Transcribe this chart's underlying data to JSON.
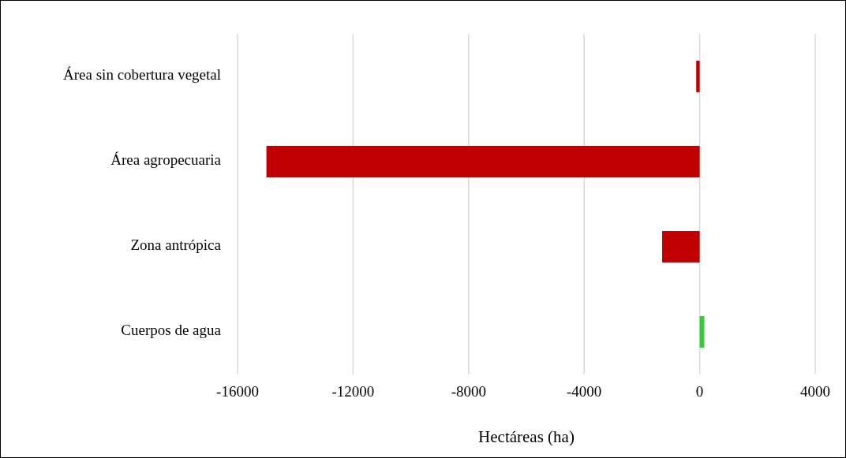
{
  "chart_data": {
    "type": "bar",
    "orientation": "horizontal",
    "categories": [
      "Área sin cobertura vegetal",
      "Área agropecuaria",
      "Zona antrópica",
      "Cuerpos de agua"
    ],
    "values": [
      -120,
      -15000,
      -1300,
      160
    ],
    "colors": [
      "#c00000",
      "#c00000",
      "#c00000",
      "#33cc33"
    ],
    "xlabel": "Hectáreas (ha)",
    "xlim": [
      -16000,
      4000
    ],
    "xticks": [
      -16000,
      -12000,
      -8000,
      -4000,
      0,
      4000
    ],
    "grid": "x"
  }
}
